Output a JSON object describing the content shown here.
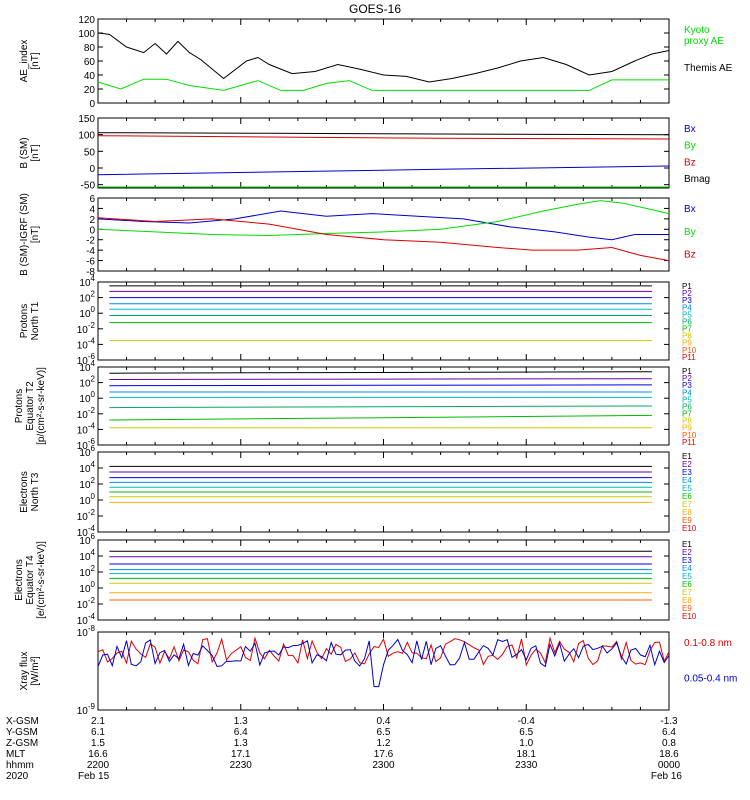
{
  "title": "GOES-16",
  "colors": {
    "black": "#000000",
    "green": "#00dd00",
    "blue": "#0000cc",
    "red": "#dd0000",
    "P": [
      "#000000",
      "#6600aa",
      "#0000ee",
      "#0088ee",
      "#00bbbb",
      "#00aa66",
      "#00bb00",
      "#cccc00",
      "#ffaa00",
      "#ff5500",
      "#dd0000",
      "#990000"
    ],
    "E": [
      "#000000",
      "#6600aa",
      "#0000ee",
      "#0088ee",
      "#00bbbb",
      "#00bb00",
      "#cccc00",
      "#ffaa00",
      "#ff5500",
      "#dd0000",
      "#990000"
    ]
  },
  "chart_data": [
    {
      "type": "line",
      "ylabel_lines": [
        "AE_index",
        "[nT]"
      ],
      "yticks": [
        "120",
        "100",
        "80",
        "60",
        "40",
        "20",
        "0"
      ],
      "ylim": [
        0,
        120
      ],
      "series": [
        {
          "name": "Kyoto proxy AE",
          "label_lines": [
            "Kyoto",
            "proxy AE"
          ],
          "color": "green",
          "x": [
            0,
            0.04,
            0.08,
            0.12,
            0.16,
            0.22,
            0.28,
            0.32,
            0.36,
            0.4,
            0.44,
            0.48,
            0.52,
            0.56,
            0.6,
            0.64,
            0.7,
            0.76,
            0.8,
            0.86,
            0.9,
            0.94,
            1.0
          ],
          "values": [
            30,
            20,
            34,
            34,
            25,
            18,
            32,
            18,
            18,
            28,
            32,
            18,
            18,
            18,
            18,
            18,
            18,
            18,
            18,
            18,
            33,
            33,
            33
          ]
        },
        {
          "name": "Themis AE",
          "label_lines": [
            "Themis AE"
          ],
          "color": "black",
          "x": [
            0,
            0.02,
            0.05,
            0.08,
            0.1,
            0.12,
            0.14,
            0.16,
            0.18,
            0.22,
            0.26,
            0.28,
            0.3,
            0.34,
            0.38,
            0.42,
            0.46,
            0.5,
            0.54,
            0.58,
            0.62,
            0.66,
            0.7,
            0.74,
            0.78,
            0.82,
            0.86,
            0.9,
            0.94,
            0.97,
            1.0
          ],
          "values": [
            100,
            98,
            80,
            72,
            85,
            70,
            88,
            72,
            62,
            35,
            60,
            65,
            55,
            42,
            45,
            55,
            48,
            40,
            38,
            30,
            35,
            42,
            50,
            60,
            65,
            55,
            40,
            45,
            60,
            70,
            75
          ]
        }
      ]
    },
    {
      "type": "line",
      "ylabel_lines": [
        "B (SM)",
        "[nT]"
      ],
      "yticks": [
        "150",
        "100",
        "50",
        "0",
        "-50"
      ],
      "ylim": [
        -60,
        150
      ],
      "series": [
        {
          "name": "Bx",
          "color": "blue",
          "x": [
            0,
            0.3,
            0.6,
            1.0
          ],
          "values": [
            -20,
            -12,
            -4,
            6
          ]
        },
        {
          "name": "By",
          "color": "green",
          "x": [
            0,
            1.0
          ],
          "values": [
            -57,
            -57
          ]
        },
        {
          "name": "Bz",
          "color": "red",
          "x": [
            0,
            0.3,
            0.6,
            1.0
          ],
          "values": [
            97,
            93,
            89,
            87
          ]
        },
        {
          "name": "Bmag",
          "color": "black",
          "x": [
            0,
            0.3,
            0.6,
            1.0
          ],
          "values": [
            106,
            104,
            102,
            100
          ]
        }
      ]
    },
    {
      "type": "line",
      "ylabel_lines": [
        "B (SM)-IGRF (SM)",
        "[nT]"
      ],
      "yticks": [
        "6",
        "4",
        "2",
        "0",
        "-2",
        "-4",
        "-6",
        "-8"
      ],
      "ylim": [
        -8,
        6
      ],
      "series": [
        {
          "name": "Bx",
          "color": "blue",
          "x": [
            0,
            0.08,
            0.16,
            0.24,
            0.32,
            0.4,
            0.48,
            0.56,
            0.64,
            0.72,
            0.8,
            0.86,
            0.9,
            0.94,
            1.0
          ],
          "values": [
            2,
            1.5,
            1.2,
            2,
            3.5,
            2.5,
            3,
            2.5,
            2,
            0.5,
            -0.5,
            -1.5,
            -2,
            -1,
            -1
          ]
        },
        {
          "name": "By",
          "color": "green",
          "x": [
            0,
            0.1,
            0.2,
            0.3,
            0.4,
            0.5,
            0.6,
            0.7,
            0.78,
            0.84,
            0.88,
            0.92,
            0.96,
            1.0
          ],
          "values": [
            0,
            -0.5,
            -1,
            -1.2,
            -0.8,
            -0.5,
            0,
            1.5,
            3.5,
            4.8,
            5.5,
            5,
            4,
            3
          ]
        },
        {
          "name": "Bz",
          "color": "red",
          "x": [
            0,
            0.1,
            0.2,
            0.3,
            0.4,
            0.5,
            0.6,
            0.7,
            0.76,
            0.84,
            0.9,
            0.95,
            1.0
          ],
          "values": [
            2.2,
            1.5,
            2,
            1,
            -1,
            -2,
            -2.5,
            -3.5,
            -4,
            -4,
            -3.5,
            -5,
            -6
          ]
        }
      ]
    },
    {
      "type": "line",
      "log": true,
      "ylabel_lines": [
        "Protons",
        "North T1"
      ],
      "yticks": [
        "10^4",
        "10^2",
        "10^0",
        "10^-2",
        "10^-4",
        "10^-6"
      ],
      "ylim": [
        -6,
        4
      ],
      "legend": [
        "P1",
        "P2",
        "P3",
        "P4",
        "P5",
        "P6",
        "P7",
        "P8",
        "P9",
        "P10",
        "P11"
      ],
      "series": [
        {
          "name": "P1",
          "values": [
            3.5,
            3.5
          ]
        },
        {
          "name": "P2",
          "values": [
            2.8,
            2.8
          ]
        },
        {
          "name": "P3",
          "values": [
            2.0,
            2.0
          ]
        },
        {
          "name": "P4",
          "values": [
            1.2,
            1.2
          ]
        },
        {
          "name": "P5",
          "values": [
            0.5,
            0.5
          ]
        },
        {
          "name": "P6",
          "values": [
            -0.3,
            -0.3
          ]
        },
        {
          "name": "P7",
          "values": [
            -1.2,
            -1.2
          ]
        },
        {
          "name": "P8",
          "values": [
            -3.5,
            -3.5
          ]
        }
      ]
    },
    {
      "type": "line",
      "log": true,
      "ylabel_lines": [
        "Protons",
        "Equator T2",
        "[p/(cm²-s-sr-keV)]"
      ],
      "yticks": [
        "10^4",
        "10^2",
        "10^0",
        "10^-2",
        "10^-4",
        "10^-6"
      ],
      "ylim": [
        -6,
        4
      ],
      "legend": [
        "P1",
        "P2",
        "P3",
        "P4",
        "P5",
        "P6",
        "P7",
        "P8",
        "P9",
        "P10",
        "P11"
      ],
      "series": [
        {
          "name": "P1",
          "values": [
            3.2,
            3.4
          ]
        },
        {
          "name": "P2",
          "values": [
            2.4,
            2.5
          ]
        },
        {
          "name": "P3",
          "values": [
            1.6,
            1.7
          ]
        },
        {
          "name": "P4",
          "values": [
            0.8,
            0.8
          ]
        },
        {
          "name": "P5",
          "values": [
            0.1,
            0.1
          ]
        },
        {
          "name": "P6",
          "values": [
            -1.2,
            -1.0
          ]
        },
        {
          "name": "P7",
          "values": [
            -2.8,
            -2.2
          ]
        },
        {
          "name": "P8",
          "values": [
            -3.8,
            -3.8
          ]
        }
      ]
    },
    {
      "type": "line",
      "log": true,
      "ylabel_lines": [
        "Electrons",
        "North T3"
      ],
      "yticks": [
        "10^6",
        "10^4",
        "10^2",
        "10^0",
        "10^-2",
        "10^-4"
      ],
      "ylim": [
        -4,
        6
      ],
      "legend": [
        "E1",
        "E2",
        "E3",
        "E4",
        "E5",
        "E6",
        "E7",
        "E8",
        "E9",
        "E10"
      ],
      "series": [
        {
          "name": "E1",
          "values": [
            4.2,
            4.2
          ]
        },
        {
          "name": "E2",
          "values": [
            3.5,
            3.5
          ]
        },
        {
          "name": "E3",
          "values": [
            2.8,
            2.8
          ]
        },
        {
          "name": "E4",
          "values": [
            2.2,
            2.2
          ]
        },
        {
          "name": "E5",
          "values": [
            1.6,
            1.6
          ]
        },
        {
          "name": "E6",
          "values": [
            1.0,
            1.0
          ]
        },
        {
          "name": "E7",
          "values": [
            0.4,
            0.4
          ]
        },
        {
          "name": "E8",
          "values": [
            -0.3,
            -0.3
          ]
        }
      ]
    },
    {
      "type": "line",
      "log": true,
      "ylabel_lines": [
        "Electrons",
        "Equator T4",
        "[e/(cm²-s-sr-keV)]"
      ],
      "yticks": [
        "10^6",
        "10^4",
        "10^2",
        "10^0",
        "10^-2",
        "10^-4"
      ],
      "ylim": [
        -4,
        6
      ],
      "legend": [
        "E1",
        "E2",
        "E3",
        "E4",
        "E5",
        "E6",
        "E7",
        "E8",
        "E9",
        "E10"
      ],
      "series": [
        {
          "name": "E1",
          "values": [
            4.6,
            4.6
          ]
        },
        {
          "name": "E2",
          "values": [
            3.9,
            3.9
          ]
        },
        {
          "name": "E3",
          "values": [
            3.0,
            3.0
          ]
        },
        {
          "name": "E4",
          "values": [
            2.3,
            2.3
          ]
        },
        {
          "name": "E5",
          "values": [
            1.8,
            1.8
          ]
        },
        {
          "name": "E6",
          "values": [
            1.2,
            1.2
          ]
        },
        {
          "name": "E7",
          "values": [
            0.6,
            0.6
          ]
        },
        {
          "name": "E8",
          "values": [
            -0.6,
            -0.6
          ]
        },
        {
          "name": "E9",
          "values": [
            -1.5,
            -1.5
          ]
        }
      ]
    },
    {
      "type": "line",
      "log": true,
      "ylabel_lines": [
        "Xray flux",
        "[W/m²]"
      ],
      "yticks": [
        "10^-8",
        "10^-9"
      ],
      "ylim": [
        -9,
        -8
      ],
      "series": [
        {
          "name": "0.1-0.8 nm",
          "color": "red"
        },
        {
          "name": "0.05-0.4 nm",
          "color": "blue"
        }
      ]
    }
  ],
  "footer": {
    "rows": [
      "X-GSM",
      "Y-GSM",
      "Z-GSM",
      "MLT",
      "hhmm",
      "2020"
    ],
    "columns": [
      {
        "values": [
          "2.1",
          "6.1",
          "1.5",
          "16.6",
          "2200",
          "Feb 15"
        ]
      },
      {
        "values": [
          "1.3",
          "6.4",
          "1.3",
          "17.1",
          "2230",
          ""
        ]
      },
      {
        "values": [
          "0.4",
          "6.5",
          "1.2",
          "17.6",
          "2300",
          ""
        ]
      },
      {
        "values": [
          "-0.4",
          "6.5",
          "1.0",
          "18.1",
          "2330",
          ""
        ]
      },
      {
        "values": [
          "-1.3",
          "6.4",
          "0.8",
          "18.6",
          "0000",
          "Feb 16"
        ]
      }
    ]
  }
}
